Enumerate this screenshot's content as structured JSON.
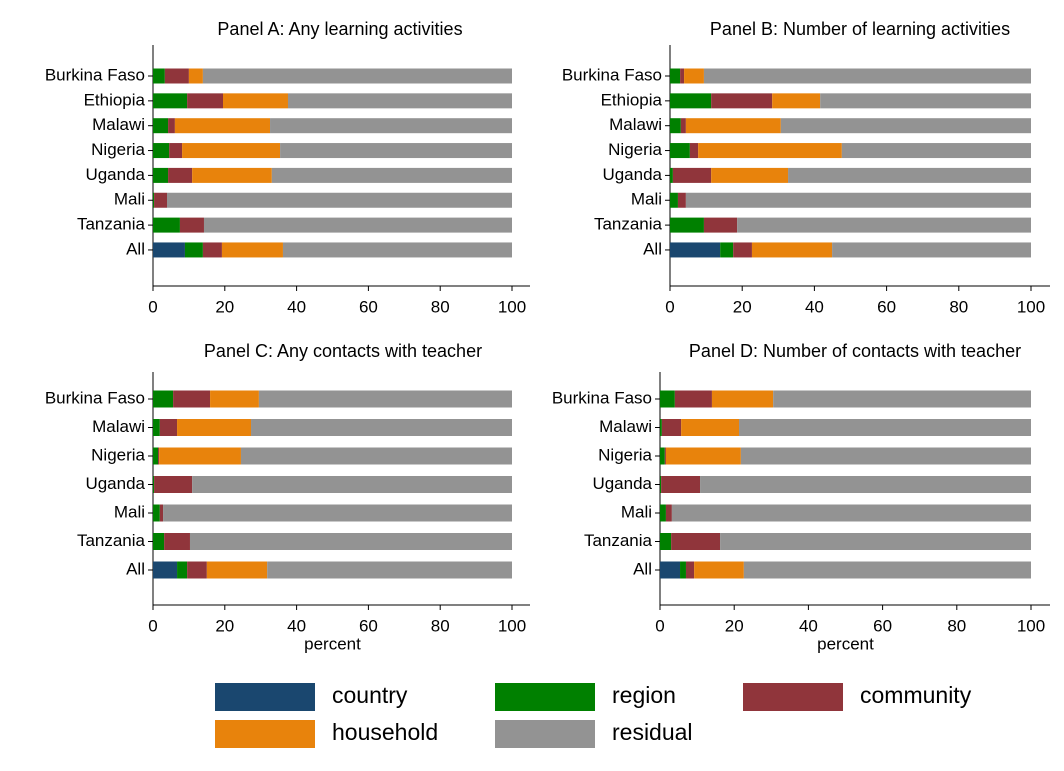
{
  "legend": [
    {
      "name": "country",
      "color": "#1a476f"
    },
    {
      "name": "region",
      "color": "#008000"
    },
    {
      "name": "community",
      "color": "#90353b"
    },
    {
      "name": "household",
      "color": "#e8830c"
    },
    {
      "name": "residual",
      "color": "#939393"
    }
  ],
  "chart_data": [
    {
      "type": "bar",
      "orientation": "horizontal",
      "stacked": true,
      "title": "Panel A: Any learning activities",
      "categories": [
        "Burkina Faso",
        "Ethiopia",
        "Malawi",
        "Nigeria",
        "Uganda",
        "Mali",
        "Tanzania",
        "All"
      ],
      "series": [
        {
          "values": [
            0,
            0,
            0,
            0,
            0,
            0,
            0,
            8.9
          ]
        },
        {
          "values": [
            3.3,
            9.5,
            4.2,
            4.5,
            4.2,
            0.3,
            7.5,
            5
          ]
        },
        {
          "values": [
            6.7,
            10,
            1.9,
            3.6,
            6.7,
            3.6,
            6.7,
            5.3
          ]
        },
        {
          "values": [
            3.9,
            18.1,
            26.5,
            27.3,
            22.2,
            0,
            0,
            17
          ]
        },
        {
          "values": [
            86.1,
            62.4,
            67.4,
            64.6,
            66.9,
            96.1,
            85.8,
            63.8
          ]
        }
      ],
      "xlim": [
        0,
        100
      ],
      "xticks": [
        0,
        20,
        40,
        60,
        80,
        100
      ]
    },
    {
      "type": "bar",
      "orientation": "horizontal",
      "stacked": true,
      "title": "Panel B: Number of learning activities",
      "categories": [
        "Burkina Faso",
        "Ethiopia",
        "Malawi",
        "Nigeria",
        "Uganda",
        "Mali",
        "Tanzania",
        "All"
      ],
      "series": [
        {
          "values": [
            0,
            0,
            0,
            0,
            0,
            0,
            0,
            13.9
          ]
        },
        {
          "values": [
            2.8,
            11.4,
            3,
            5.5,
            0.8,
            2.2,
            9.4,
            3.6
          ]
        },
        {
          "values": [
            1.1,
            16.9,
            1.4,
            2.3,
            10.6,
            2.2,
            9.2,
            5.2
          ]
        },
        {
          "values": [
            5.5,
            13.3,
            26.3,
            39.8,
            21.3,
            0,
            0,
            22.2
          ]
        },
        {
          "values": [
            90.6,
            58.4,
            69.3,
            52.4,
            67.3,
            95.6,
            81.4,
            55.1
          ]
        }
      ],
      "xlim": [
        0,
        100
      ],
      "xticks": [
        0,
        20,
        40,
        60,
        80,
        100
      ]
    },
    {
      "type": "bar",
      "orientation": "horizontal",
      "stacked": true,
      "title": "Panel C: Any contacts with teacher",
      "categories": [
        "Burkina Faso",
        "Malawi",
        "Nigeria",
        "Uganda",
        "Mali",
        "Tanzania",
        "All"
      ],
      "series": [
        {
          "values": [
            0,
            0,
            0,
            0,
            0,
            0,
            6.7
          ]
        },
        {
          "values": [
            5.6,
            1.9,
            1.4,
            0.3,
            1.9,
            3.1,
            2.8
          ]
        },
        {
          "values": [
            10.3,
            4.8,
            0.3,
            10.6,
            0.9,
            7.2,
            5.5
          ]
        },
        {
          "values": [
            13.6,
            20.6,
            22.8,
            0,
            0,
            0,
            16.8
          ]
        },
        {
          "values": [
            70.5,
            72.7,
            75.5,
            89.1,
            97.2,
            89.7,
            68.2
          ]
        }
      ],
      "xlim": [
        0,
        100
      ],
      "xticks": [
        0,
        20,
        40,
        60,
        80,
        100
      ],
      "xlabel": "percent"
    },
    {
      "type": "bar",
      "orientation": "horizontal",
      "stacked": true,
      "title": "Panel D: Number of contacts with teacher",
      "categories": [
        "Burkina Faso",
        "Malawi",
        "Nigeria",
        "Uganda",
        "Mali",
        "Tanzania",
        "All"
      ],
      "series": [
        {
          "values": [
            0,
            0,
            0,
            0,
            0,
            0,
            5.4
          ]
        },
        {
          "values": [
            4,
            0.5,
            1.3,
            0.3,
            1.6,
            3,
            1.6
          ]
        },
        {
          "values": [
            10,
            5.2,
            0.3,
            10.5,
            1.6,
            13.2,
            2.2
          ]
        },
        {
          "values": [
            16.5,
            15.6,
            20.2,
            0,
            0,
            0,
            13.4
          ]
        },
        {
          "values": [
            69.5,
            78.7,
            78.2,
            89.2,
            96.8,
            83.8,
            77.4
          ]
        }
      ],
      "xlim": [
        0,
        100
      ],
      "xticks": [
        0,
        20,
        40,
        60,
        80,
        100
      ],
      "xlabel": "percent"
    }
  ]
}
